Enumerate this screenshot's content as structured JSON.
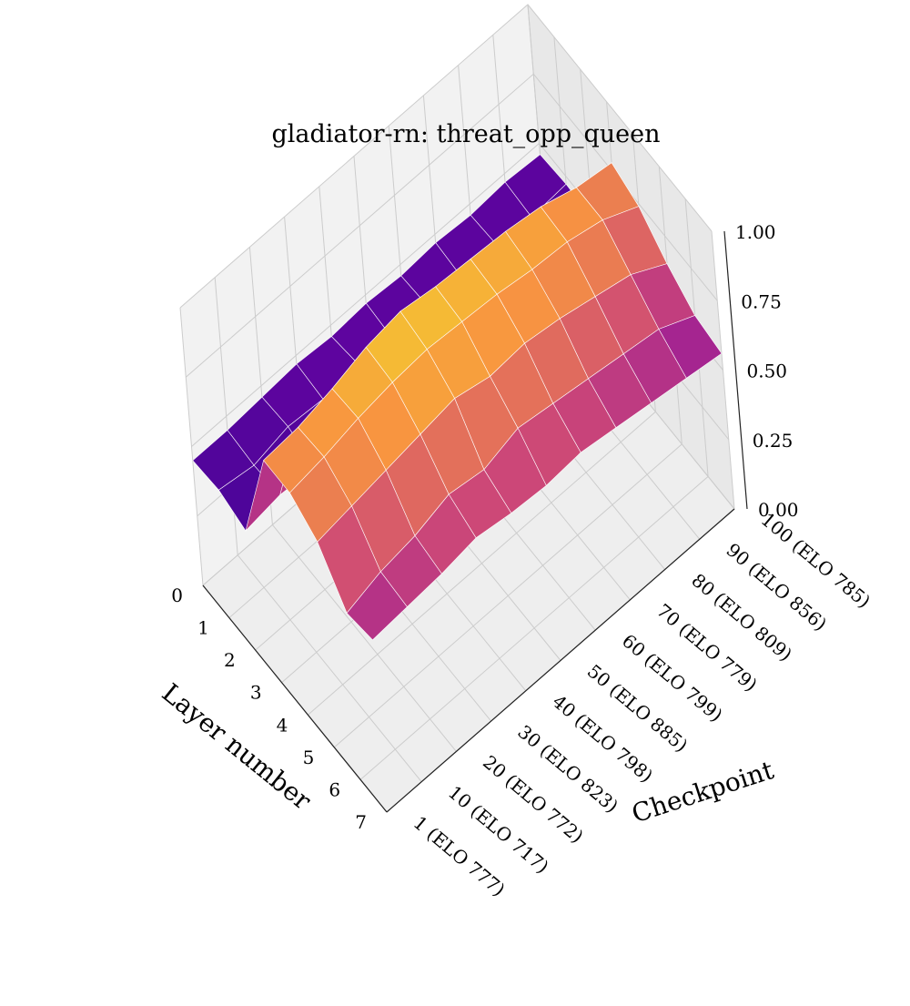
{
  "chart_data": {
    "type": "surface",
    "title": "gladiator-rn: threat_opp_queen",
    "xlabel": "Checkpoint",
    "ylabel": "Layer number",
    "zlabel": "",
    "x_ticks": [
      "1 (ELO 777)",
      "10 (ELO 717)",
      "20 (ELO 772)",
      "30 (ELO 823)",
      "40 (ELO 798)",
      "50 (ELO 885)",
      "60 (ELO 799)",
      "70 (ELO 779)",
      "80 (ELO 809)",
      "90 (ELO 856)",
      "100 (ELO 785)"
    ],
    "y_ticks": [
      "0",
      "1",
      "2",
      "3",
      "4",
      "5",
      "6",
      "7"
    ],
    "z_ticks": [
      "0.00",
      "0.25",
      "0.50",
      "0.75",
      "1.00"
    ],
    "zlim": [
      0,
      1
    ],
    "colormap": "plasma",
    "grid": true,
    "layers": [
      0,
      1,
      2,
      3,
      4,
      5,
      6,
      7
    ],
    "z": [
      [
        0.45,
        0.45,
        0.46,
        0.47,
        0.46,
        0.47,
        0.46,
        0.47,
        0.46,
        0.47,
        0.46
      ],
      [
        0.46,
        0.44,
        0.47,
        0.46,
        0.48,
        0.46,
        0.47,
        0.46,
        0.47,
        0.46,
        0.47
      ],
      [
        0.43,
        0.45,
        0.44,
        0.45,
        0.46,
        0.44,
        0.45,
        0.46,
        0.45,
        0.44,
        0.46
      ],
      [
        0.8,
        0.81,
        0.84,
        0.88,
        0.9,
        0.88,
        0.87,
        0.86,
        0.84,
        0.8,
        0.78
      ],
      [
        0.8,
        0.82,
        0.85,
        0.87,
        0.88,
        0.87,
        0.86,
        0.84,
        0.83,
        0.8,
        0.74
      ],
      [
        0.74,
        0.76,
        0.78,
        0.8,
        0.82,
        0.79,
        0.8,
        0.78,
        0.75,
        0.72,
        0.65
      ],
      [
        0.6,
        0.64,
        0.66,
        0.7,
        0.68,
        0.72,
        0.7,
        0.68,
        0.66,
        0.64,
        0.58
      ],
      [
        0.62,
        0.63,
        0.64,
        0.66,
        0.64,
        0.63,
        0.64,
        0.62,
        0.6,
        0.58,
        0.56
      ]
    ]
  }
}
